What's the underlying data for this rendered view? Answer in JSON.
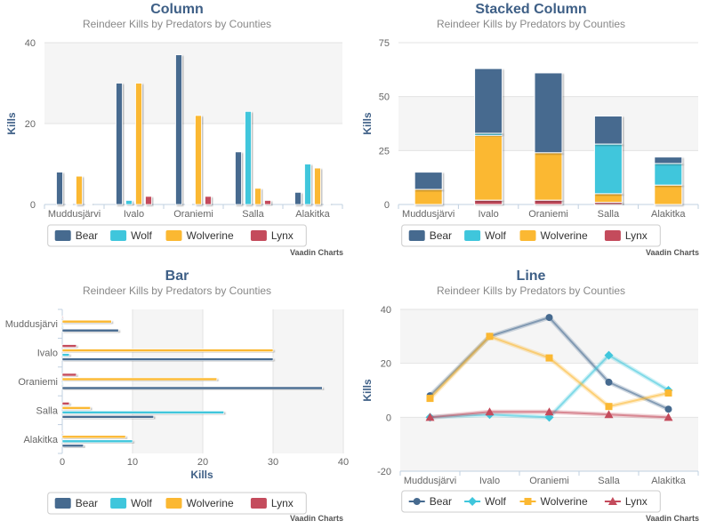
{
  "series_meta": [
    {
      "name": "Bear",
      "color": "#466a8f"
    },
    {
      "name": "Wolf",
      "color": "#3fc6dc"
    },
    {
      "name": "Wolverine",
      "color": "#fbb832"
    },
    {
      "name": "Lynx",
      "color": "#c44b5c"
    }
  ],
  "credit": "Vaadin Charts",
  "chart_data": [
    {
      "type": "bar",
      "orientation": "vertical",
      "title": "Column",
      "subtitle": "Reindeer Kills by Predators by Counties",
      "ylabel": "Kills",
      "ylim": [
        0,
        40
      ],
      "yticks": [
        0,
        20,
        40
      ],
      "categories": [
        "Muddusjärvi",
        "Ivalo",
        "Oraniemi",
        "Salla",
        "Alakitka"
      ],
      "series": [
        {
          "name": "Bear",
          "values": [
            8,
            30,
            37,
            13,
            3
          ]
        },
        {
          "name": "Wolf",
          "values": [
            0,
            1,
            0,
            23,
            10
          ]
        },
        {
          "name": "Wolverine",
          "values": [
            7,
            30,
            22,
            4,
            9
          ]
        },
        {
          "name": "Lynx",
          "values": [
            0,
            2,
            2,
            1,
            0
          ]
        }
      ],
      "legend": "bottom-center"
    },
    {
      "type": "bar",
      "orientation": "vertical",
      "stacked": true,
      "title": "Stacked Column",
      "subtitle": "Reindeer Kills by Predators by Counties",
      "ylabel": "Kills",
      "ylim": [
        0,
        75
      ],
      "yticks": [
        0,
        25,
        50,
        75
      ],
      "categories": [
        "Muddusjärvi",
        "Ivalo",
        "Oraniemi",
        "Salla",
        "Alakitka"
      ],
      "series": [
        {
          "name": "Bear",
          "values": [
            8,
            30,
            37,
            13,
            3
          ]
        },
        {
          "name": "Wolf",
          "values": [
            0,
            1,
            0,
            23,
            10
          ]
        },
        {
          "name": "Wolverine",
          "values": [
            7,
            30,
            22,
            4,
            9
          ]
        },
        {
          "name": "Lynx",
          "values": [
            0,
            2,
            2,
            1,
            0
          ]
        }
      ],
      "legend": "bottom-center"
    },
    {
      "type": "bar",
      "orientation": "horizontal",
      "title": "Bar",
      "subtitle": "Reindeer Kills by Predators by Counties",
      "xlabel": "Kills",
      "xlim": [
        0,
        40
      ],
      "xticks": [
        0,
        10,
        20,
        30,
        40
      ],
      "categories": [
        "Muddusjärvi",
        "Ivalo",
        "Oraniemi",
        "Salla",
        "Alakitka"
      ],
      "series": [
        {
          "name": "Bear",
          "values": [
            8,
            30,
            37,
            13,
            3
          ]
        },
        {
          "name": "Wolf",
          "values": [
            0,
            1,
            0,
            23,
            10
          ]
        },
        {
          "name": "Wolverine",
          "values": [
            7,
            30,
            22,
            4,
            9
          ]
        },
        {
          "name": "Lynx",
          "values": [
            0,
            2,
            2,
            1,
            0
          ]
        }
      ],
      "legend": "bottom-center"
    },
    {
      "type": "line",
      "title": "Line",
      "subtitle": "Reindeer Kills by Predators by Counties",
      "ylabel": "Kills",
      "ylim": [
        -20,
        40
      ],
      "yticks": [
        -20,
        0,
        20,
        40
      ],
      "categories": [
        "Muddusjärvi",
        "Ivalo",
        "Oraniemi",
        "Salla",
        "Alakitka"
      ],
      "series": [
        {
          "name": "Bear",
          "marker": "circle",
          "values": [
            8,
            30,
            37,
            13,
            3
          ]
        },
        {
          "name": "Wolf",
          "marker": "diamond",
          "values": [
            0,
            1,
            0,
            23,
            10
          ]
        },
        {
          "name": "Wolverine",
          "marker": "square",
          "values": [
            7,
            30,
            22,
            4,
            9
          ]
        },
        {
          "name": "Lynx",
          "marker": "triangle",
          "values": [
            0,
            2,
            2,
            1,
            0
          ]
        }
      ],
      "legend": "bottom-center"
    }
  ]
}
